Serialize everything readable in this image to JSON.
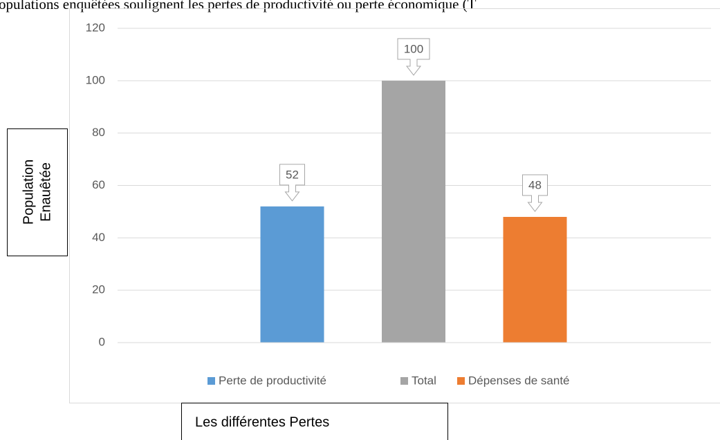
{
  "chart_data": {
    "type": "bar",
    "caption": "opulations enquêtées soulignent les pertes de productivité ou perte économique (T",
    "y_label": [
      "Population",
      "Enauêtée"
    ],
    "x_label": "Les différentes Pertes",
    "series": [
      {
        "name": "Perte de productivité",
        "color": "#5b9bd5",
        "values": [
          52
        ]
      },
      {
        "name": "Total",
        "color": "#a5a5a5",
        "values": [
          100
        ]
      },
      {
        "name": "Dépenses de santé",
        "color": "#ed7d31",
        "values": [
          48
        ]
      }
    ],
    "ylim": [
      0,
      120
    ],
    "yticks": [
      0,
      20,
      40,
      60,
      80,
      100,
      120
    ],
    "grid": true,
    "legend": "bottom"
  }
}
